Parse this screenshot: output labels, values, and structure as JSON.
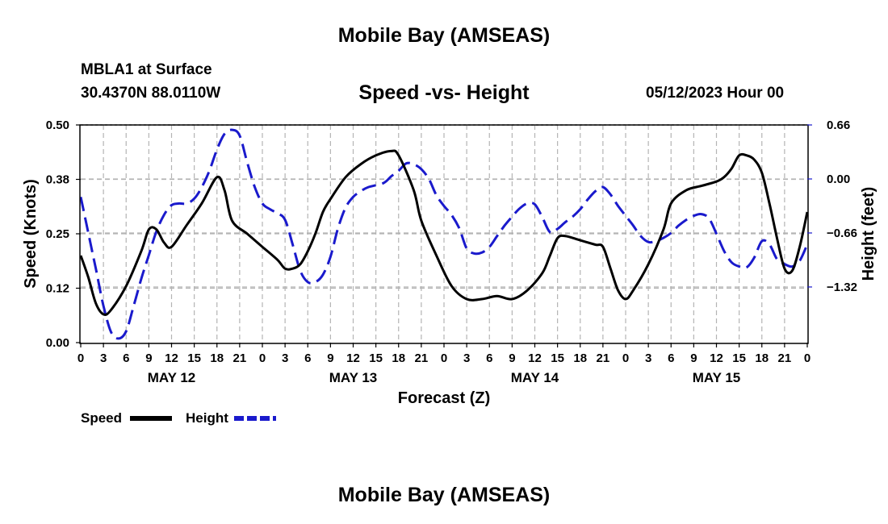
{
  "header": {
    "title": "Mobile Bay (AMSEAS)",
    "station": "MBLA1 at Surface",
    "coords": "30.4370N  88.0110W",
    "subtitle": "Speed -vs- Height",
    "datetime": "05/12/2023 Hour 00"
  },
  "footer": {
    "title": "Mobile Bay (AMSEAS)"
  },
  "legend": {
    "speed_label": "Speed",
    "height_label": "Height"
  },
  "colors": {
    "speed": "#000000",
    "height": "#1a1acc",
    "grid": "#b4b4b4"
  },
  "chart_data": {
    "type": "line",
    "title": "Speed -vs- Height",
    "xlabel": "Forecast (Z)",
    "ylabel_left": "Speed (Knots)",
    "ylabel_right": "Height (feet)",
    "x_range_hours": [
      0,
      96
    ],
    "x_ticks": [
      {
        "h": 0,
        "label": "0"
      },
      {
        "h": 3,
        "label": "3"
      },
      {
        "h": 6,
        "label": "6"
      },
      {
        "h": 9,
        "label": "9"
      },
      {
        "h": 12,
        "label": "12"
      },
      {
        "h": 15,
        "label": "15"
      },
      {
        "h": 18,
        "label": "18"
      },
      {
        "h": 21,
        "label": "21"
      },
      {
        "h": 24,
        "label": "0"
      },
      {
        "h": 27,
        "label": "3"
      },
      {
        "h": 30,
        "label": "6"
      },
      {
        "h": 33,
        "label": "9"
      },
      {
        "h": 36,
        "label": "12"
      },
      {
        "h": 39,
        "label": "15"
      },
      {
        "h": 42,
        "label": "18"
      },
      {
        "h": 45,
        "label": "21"
      },
      {
        "h": 48,
        "label": "0"
      },
      {
        "h": 51,
        "label": "3"
      },
      {
        "h": 54,
        "label": "6"
      },
      {
        "h": 57,
        "label": "9"
      },
      {
        "h": 60,
        "label": "12"
      },
      {
        "h": 63,
        "label": "15"
      },
      {
        "h": 66,
        "label": "18"
      },
      {
        "h": 69,
        "label": "21"
      },
      {
        "h": 72,
        "label": "0"
      },
      {
        "h": 75,
        "label": "3"
      },
      {
        "h": 78,
        "label": "6"
      },
      {
        "h": 81,
        "label": "9"
      },
      {
        "h": 84,
        "label": "12"
      },
      {
        "h": 87,
        "label": "15"
      },
      {
        "h": 90,
        "label": "18"
      },
      {
        "h": 93,
        "label": "21"
      },
      {
        "h": 96,
        "label": "0"
      }
    ],
    "day_labels": [
      {
        "h": 12,
        "label": "MAY 12"
      },
      {
        "h": 36,
        "label": "MAY 13"
      },
      {
        "h": 60,
        "label": "MAY 14"
      },
      {
        "h": 84,
        "label": "MAY 15"
      }
    ],
    "y_left": {
      "range": [
        0,
        0.5
      ],
      "ticks": [
        0.0,
        0.125,
        0.25,
        0.375,
        0.5
      ],
      "tick_labels": [
        "0.00",
        "0.12",
        "0.25",
        "0.38",
        "0.50"
      ]
    },
    "y_right": {
      "range": [
        -2.0,
        0.66
      ],
      "ticks": [
        0.66,
        0.0,
        -0.66,
        -1.32
      ],
      "tick_labels": [
        "0.66",
        "0.00",
        "−0.66",
        "−1.32"
      ]
    },
    "series": [
      {
        "name": "Speed",
        "axis": "left",
        "style": "solid",
        "points": [
          [
            0,
            0.2
          ],
          [
            1,
            0.15
          ],
          [
            2,
            0.09
          ],
          [
            3,
            0.065
          ],
          [
            4,
            0.075
          ],
          [
            6,
            0.13
          ],
          [
            8,
            0.21
          ],
          [
            9,
            0.26
          ],
          [
            10,
            0.26
          ],
          [
            11,
            0.23
          ],
          [
            12,
            0.22
          ],
          [
            14,
            0.27
          ],
          [
            16,
            0.32
          ],
          [
            18,
            0.38
          ],
          [
            19,
            0.35
          ],
          [
            20,
            0.28
          ],
          [
            22,
            0.25
          ],
          [
            24,
            0.22
          ],
          [
            26,
            0.19
          ],
          [
            27,
            0.17
          ],
          [
            28,
            0.17
          ],
          [
            29,
            0.18
          ],
          [
            30,
            0.21
          ],
          [
            31,
            0.25
          ],
          [
            32,
            0.3
          ],
          [
            33,
            0.33
          ],
          [
            35,
            0.38
          ],
          [
            37,
            0.41
          ],
          [
            39,
            0.43
          ],
          [
            41,
            0.44
          ],
          [
            42,
            0.43
          ],
          [
            44,
            0.35
          ],
          [
            45,
            0.28
          ],
          [
            47,
            0.2
          ],
          [
            49,
            0.13
          ],
          [
            51,
            0.1
          ],
          [
            53,
            0.1
          ],
          [
            55,
            0.107
          ],
          [
            57,
            0.1
          ],
          [
            59,
            0.12
          ],
          [
            61,
            0.16
          ],
          [
            62,
            0.2
          ],
          [
            63,
            0.24
          ],
          [
            64,
            0.245
          ],
          [
            66,
            0.235
          ],
          [
            68,
            0.225
          ],
          [
            69,
            0.22
          ],
          [
            70,
            0.17
          ],
          [
            71,
            0.12
          ],
          [
            72,
            0.1
          ],
          [
            73,
            0.12
          ],
          [
            75,
            0.18
          ],
          [
            77,
            0.26
          ],
          [
            78,
            0.32
          ],
          [
            80,
            0.35
          ],
          [
            82,
            0.36
          ],
          [
            84,
            0.37
          ],
          [
            85,
            0.38
          ],
          [
            86,
            0.4
          ],
          [
            87,
            0.43
          ],
          [
            88,
            0.43
          ],
          [
            89,
            0.42
          ],
          [
            90,
            0.39
          ],
          [
            91,
            0.32
          ],
          [
            92,
            0.24
          ],
          [
            93,
            0.17
          ],
          [
            94,
            0.165
          ],
          [
            95,
            0.22
          ],
          [
            96,
            0.3
          ]
        ]
      },
      {
        "name": "Height",
        "axis": "right",
        "style": "dashed",
        "points": [
          [
            0,
            -0.22
          ],
          [
            1,
            -0.66
          ],
          [
            2,
            -1.1
          ],
          [
            3,
            -1.55
          ],
          [
            4,
            -1.87
          ],
          [
            5,
            -1.95
          ],
          [
            6,
            -1.86
          ],
          [
            7,
            -1.55
          ],
          [
            8,
            -1.22
          ],
          [
            9,
            -0.93
          ],
          [
            10,
            -0.64
          ],
          [
            11,
            -0.44
          ],
          [
            12,
            -0.32
          ],
          [
            13,
            -0.3
          ],
          [
            14,
            -0.3
          ],
          [
            15,
            -0.24
          ],
          [
            16,
            -0.1
          ],
          [
            17,
            0.1
          ],
          [
            18,
            0.36
          ],
          [
            19,
            0.55
          ],
          [
            20,
            0.6
          ],
          [
            21,
            0.53
          ],
          [
            22,
            0.2
          ],
          [
            23,
            -0.1
          ],
          [
            24,
            -0.3
          ],
          [
            25,
            -0.37
          ],
          [
            26,
            -0.42
          ],
          [
            27,
            -0.5
          ],
          [
            28,
            -0.8
          ],
          [
            29,
            -1.12
          ],
          [
            30,
            -1.26
          ],
          [
            31,
            -1.26
          ],
          [
            32,
            -1.17
          ],
          [
            33,
            -0.95
          ],
          [
            34,
            -0.6
          ],
          [
            35,
            -0.35
          ],
          [
            36,
            -0.22
          ],
          [
            37,
            -0.15
          ],
          [
            38,
            -0.1
          ],
          [
            40,
            -0.05
          ],
          [
            41,
            0.03
          ],
          [
            42,
            0.1
          ],
          [
            43,
            0.19
          ],
          [
            44,
            0.18
          ],
          [
            45,
            0.12
          ],
          [
            46,
            0.0
          ],
          [
            47,
            -0.2
          ],
          [
            48,
            -0.33
          ],
          [
            49,
            -0.44
          ],
          [
            50,
            -0.6
          ],
          [
            51,
            -0.85
          ],
          [
            52,
            -0.91
          ],
          [
            53,
            -0.9
          ],
          [
            54,
            -0.83
          ],
          [
            55,
            -0.7
          ],
          [
            56,
            -0.57
          ],
          [
            57,
            -0.46
          ],
          [
            58,
            -0.36
          ],
          [
            59,
            -0.3
          ],
          [
            60,
            -0.31
          ],
          [
            61,
            -0.47
          ],
          [
            62,
            -0.65
          ],
          [
            63,
            -0.61
          ],
          [
            64,
            -0.53
          ],
          [
            65,
            -0.46
          ],
          [
            66,
            -0.37
          ],
          [
            67,
            -0.25
          ],
          [
            68,
            -0.15
          ],
          [
            69,
            -0.1
          ],
          [
            70,
            -0.19
          ],
          [
            71,
            -0.33
          ],
          [
            72,
            -0.45
          ],
          [
            73,
            -0.57
          ],
          [
            74,
            -0.7
          ],
          [
            75,
            -0.77
          ],
          [
            76,
            -0.76
          ],
          [
            77,
            -0.72
          ],
          [
            78,
            -0.66
          ],
          [
            79,
            -0.57
          ],
          [
            80,
            -0.5
          ],
          [
            81,
            -0.45
          ],
          [
            82,
            -0.43
          ],
          [
            83,
            -0.48
          ],
          [
            84,
            -0.67
          ],
          [
            85,
            -0.88
          ],
          [
            86,
            -1.02
          ],
          [
            87,
            -1.07
          ],
          [
            88,
            -1.08
          ],
          [
            89,
            -0.96
          ],
          [
            90,
            -0.76
          ],
          [
            91,
            -0.8
          ],
          [
            92,
            -0.98
          ],
          [
            93,
            -1.04
          ],
          [
            94,
            -1.07
          ],
          [
            95,
            -1.0
          ],
          [
            96,
            -0.8
          ]
        ]
      }
    ]
  }
}
